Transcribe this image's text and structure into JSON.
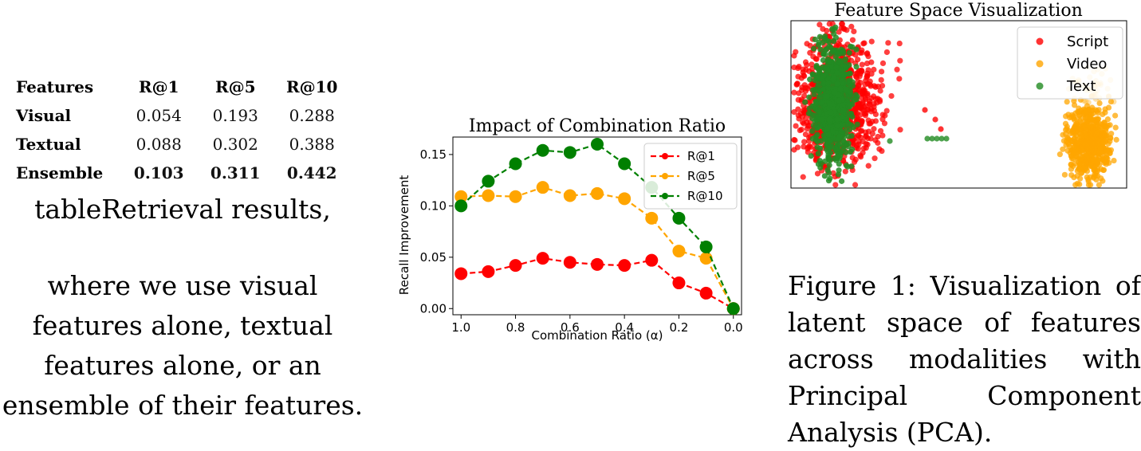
{
  "table": {
    "headers": [
      "Features",
      "R@1",
      "R@5",
      "R@10"
    ],
    "rows": [
      {
        "name": "Visual",
        "values": [
          "0.054",
          "0.193",
          "0.288"
        ]
      },
      {
        "name": "Textual",
        "values": [
          "0.088",
          "0.302",
          "0.388"
        ]
      },
      {
        "name": "Ensemble",
        "values": [
          "0.103",
          "0.311",
          "0.442"
        ]
      }
    ],
    "caption_title": "tableRetrieval results,",
    "caption_body": "where we use visual features alone, textual features alone, or an ensemble of their features."
  },
  "chart_data": [
    {
      "type": "line",
      "title": "Impact of Combination Ratio",
      "xlabel": "Combination Ratio (α)",
      "ylabel": "Recall Improvement",
      "x": [
        1.0,
        0.9,
        0.8,
        0.7,
        0.6,
        0.5,
        0.4,
        0.3,
        0.2,
        0.1,
        0.0
      ],
      "x_ticks": [
        "1.0",
        "0.8",
        "0.6",
        "0.4",
        "0.2",
        "0.0"
      ],
      "y_ticks": [
        "0.00",
        "0.05",
        "0.10",
        "0.15"
      ],
      "xlim": [
        1.03,
        -0.03
      ],
      "ylim": [
        -0.006,
        0.167
      ],
      "legend_position": "top-right",
      "series": [
        {
          "name": "R@1",
          "color": "#ff0000",
          "values": [
            0.034,
            0.036,
            0.042,
            0.049,
            0.045,
            0.043,
            0.042,
            0.047,
            0.025,
            0.015,
            0.0
          ]
        },
        {
          "name": "R@5",
          "color": "#ffa500",
          "values": [
            0.109,
            0.11,
            0.109,
            0.118,
            0.11,
            0.112,
            0.107,
            0.088,
            0.056,
            0.049,
            0.0
          ]
        },
        {
          "name": "R@10",
          "color": "#008000",
          "values": [
            0.1,
            0.124,
            0.141,
            0.154,
            0.152,
            0.16,
            0.141,
            0.118,
            0.088,
            0.06,
            0.0
          ]
        }
      ]
    },
    {
      "type": "scatter",
      "title": "Feature Space Visualization",
      "axes_visible": false,
      "legend_position": "top-right",
      "series": [
        {
          "name": "Script",
          "color": "#ff0000"
        },
        {
          "name": "Video",
          "color": "#ffa500"
        },
        {
          "name": "Text",
          "color": "#228b22"
        }
      ]
    }
  ],
  "figure_caption": {
    "label": "Figure 1:",
    "text": "Visualization of latent space of features across modalities with Principal Component Analysis (PCA)."
  }
}
